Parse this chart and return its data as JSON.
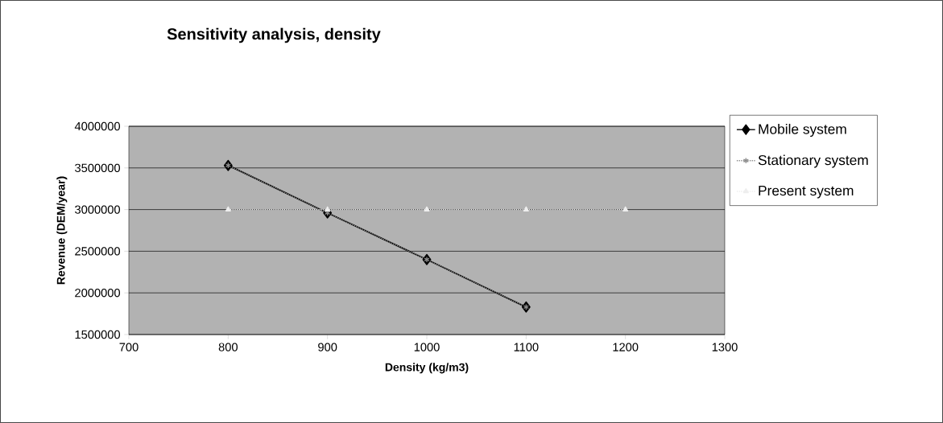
{
  "chart_data": {
    "type": "line",
    "title": "Sensitivity analysis, density",
    "xlabel": "Density (kg/m3)",
    "ylabel": "Revenue (DEM/year)",
    "x": [
      800,
      900,
      1000,
      1100,
      1200
    ],
    "series": [
      {
        "name": "Mobile system",
        "color": "#000000",
        "marker": "diamond",
        "line_style": "solid",
        "values": [
          3530000,
          2960000,
          2400000,
          1830000,
          null
        ]
      },
      {
        "name": "Stationary system",
        "color": "#8c8c8c",
        "marker": "cross",
        "line_style": "dotted",
        "values": [
          3530000,
          2960000,
          2400000,
          1830000,
          null
        ]
      },
      {
        "name": "Present system",
        "color": "#eeeeee",
        "marker": "triangle",
        "line_style": "dotted",
        "values": [
          3000000,
          3000000,
          3000000,
          3000000,
          3000000
        ]
      }
    ],
    "xlim": [
      700,
      1300
    ],
    "xticks": [
      700,
      800,
      900,
      1000,
      1100,
      1200,
      1300
    ],
    "ylim": [
      1500000,
      4000000
    ],
    "yticks": [
      1500000,
      2000000,
      2500000,
      3000000,
      3500000,
      4000000
    ],
    "grid": "y",
    "legend": "right"
  }
}
